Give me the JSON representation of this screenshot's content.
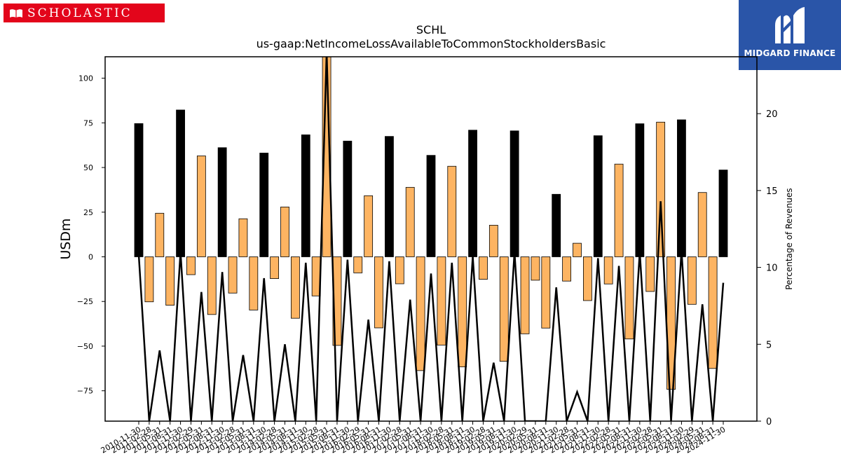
{
  "logos": {
    "left_text": "SCHOLASTIC",
    "left_icon": "open-book-icon",
    "right_text": "MIDGARD FINANCE",
    "right_icon": "midgard-m-icon",
    "left_color": "#e3051b",
    "right_color": "#2a55a8"
  },
  "chart_data": {
    "type": "bar",
    "title": "SCHL",
    "subtitle": "us-gaap:NetIncomeLossAvailableToCommonStockholdersBasic",
    "ylabel": "USDm",
    "y2label": "Percentage of Revenues",
    "ylim": [
      -92,
      112
    ],
    "y2lim": [
      0,
      23.7
    ],
    "yticks": [
      -75,
      -50,
      -25,
      0,
      25,
      50,
      75,
      100
    ],
    "y2ticks": [
      0,
      5,
      10,
      15,
      20
    ],
    "grid": false,
    "legend": "none",
    "categories": [
      "2010-11-30",
      "2011-02-28",
      "2011-05-31",
      "2011-08-31",
      "2011-11-30",
      "2012-02-29",
      "2012-05-31",
      "2012-08-31",
      "2012-11-30",
      "2013-02-28",
      "2013-05-31",
      "2013-08-31",
      "2013-11-30",
      "2014-02-28",
      "2014-05-31",
      "2014-08-31",
      "2014-11-30",
      "2015-02-28",
      "2015-05-31",
      "2015-08-31",
      "2015-11-30",
      "2016-02-29",
      "2016-05-31",
      "2016-08-31",
      "2016-11-30",
      "2017-02-28",
      "2017-05-31",
      "2017-08-31",
      "2017-11-30",
      "2018-02-28",
      "2018-05-31",
      "2018-08-31",
      "2018-11-30",
      "2019-02-28",
      "2019-05-31",
      "2019-08-31",
      "2019-11-30",
      "2020-02-29",
      "2020-05-31",
      "2020-08-31",
      "2020-11-30",
      "2021-02-28",
      "2021-05-31",
      "2021-08-31",
      "2021-11-30",
      "2022-02-28",
      "2022-05-31",
      "2022-08-31",
      "2022-11-30",
      "2023-02-28",
      "2023-05-31",
      "2023-08-31",
      "2023-11-30",
      "2024-02-29",
      "2024-05-31",
      "2024-08-31",
      "2024-11-30"
    ],
    "series": [
      {
        "role": "bars",
        "values": [
          74.6,
          -25.2,
          24.4,
          -27.1,
          82.2,
          -10.0,
          56.5,
          -32.3,
          61.1,
          -20.3,
          21.3,
          -29.8,
          58.1,
          -12.2,
          27.9,
          -34.4,
          68.3,
          -21.9,
          130.0,
          -49.6,
          64.8,
          -9.0,
          34.2,
          -39.8,
          67.4,
          -15.1,
          38.9,
          -63.7,
          56.8,
          -49.4,
          50.7,
          -61.6,
          70.9,
          -12.6,
          17.7,
          -58.5,
          70.5,
          -43.1,
          -13.1,
          -39.9,
          35.0,
          -13.6,
          7.6,
          -24.5,
          67.8,
          -15.2,
          51.9,
          -46.0,
          74.5,
          -19.4,
          75.4,
          -74.2,
          76.7,
          -26.6,
          36.0,
          -62.5,
          48.6
        ],
        "highlight_color": "#000000",
        "other_color": "#fdb462"
      },
      {
        "role": "line",
        "values": [
          10.8,
          0,
          4.6,
          0,
          11.0,
          0,
          8.4,
          0,
          9.7,
          0,
          4.3,
          0,
          9.3,
          0,
          5.0,
          0,
          10.3,
          0,
          24.0,
          0,
          10.5,
          0,
          6.6,
          0,
          10.4,
          0,
          7.9,
          0,
          9.6,
          0,
          10.3,
          0,
          10.7,
          0,
          3.8,
          0,
          11.0,
          0,
          0,
          0,
          8.7,
          0,
          1.9,
          0,
          10.6,
          0,
          10.1,
          0,
          11.0,
          0,
          14.3,
          0,
          11.1,
          0,
          7.6,
          0,
          9.0
        ],
        "color": "#000000"
      }
    ]
  }
}
